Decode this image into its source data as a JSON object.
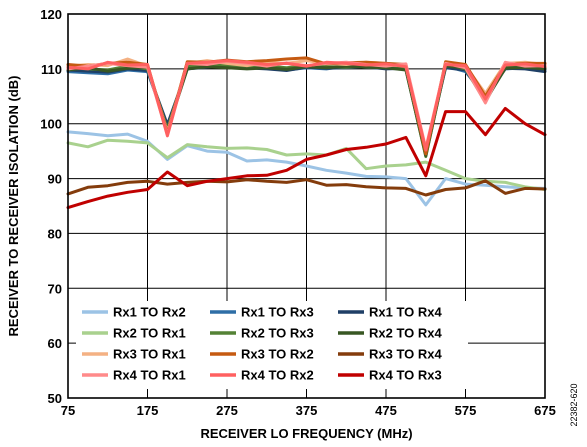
{
  "figure_id": "22382-620",
  "chart_data": {
    "type": "line",
    "xlabel": "RECEIVER LO FREQUENCY (MHz)",
    "ylabel": "RECEIVER TO RECEIVER ISOLATION (dB)",
    "xlim": [
      75,
      675
    ],
    "ylim": [
      50,
      120
    ],
    "xticks": [
      75,
      175,
      275,
      375,
      475,
      575,
      675
    ],
    "yticks": [
      50,
      60,
      70,
      80,
      90,
      100,
      110,
      120
    ],
    "grid": true,
    "legend_position": "bottom-left, inside plot",
    "x": [
      75,
      100,
      125,
      150,
      175,
      200,
      225,
      250,
      275,
      300,
      325,
      350,
      375,
      400,
      425,
      450,
      475,
      500,
      525,
      550,
      575,
      600,
      625,
      650,
      675
    ],
    "series": [
      {
        "name": "Rx1 TO Rx2",
        "color": "#9cc3e5",
        "values": [
          98.5,
          98.2,
          97.8,
          98.1,
          96.8,
          93.5,
          96.0,
          95.0,
          94.8,
          93.2,
          93.4,
          93.0,
          92.3,
          91.5,
          91.0,
          90.4,
          90.3,
          90.0,
          85.2,
          90.0,
          89.0,
          88.8,
          88.5,
          88.3,
          88.2
        ]
      },
      {
        "name": "Rx1 TO Rx3",
        "color": "#2e6ea6",
        "values": [
          109.5,
          109.3,
          109.1,
          109.8,
          109.5,
          99.5,
          110.2,
          110.5,
          110.3,
          110.1,
          110.4,
          109.8,
          110.2,
          110.0,
          110.5,
          110.3,
          110.1,
          110.0,
          94.5,
          110.5,
          109.5,
          105.0,
          110.0,
          110.2,
          109.8
        ]
      },
      {
        "name": "Rx1 TO Rx4",
        "color": "#1f3f66",
        "values": [
          109.8,
          109.6,
          109.4,
          110.0,
          109.7,
          99.8,
          110.0,
          110.3,
          110.5,
          110.2,
          110.0,
          109.7,
          110.3,
          110.1,
          110.2,
          110.4,
          110.0,
          110.1,
          95.0,
          110.2,
          109.8,
          104.5,
          110.1,
          110.0,
          109.5
        ]
      },
      {
        "name": "Rx2 TO Rx1",
        "color": "#a9d18e",
        "values": [
          96.5,
          95.8,
          97.0,
          96.8,
          96.5,
          93.8,
          96.2,
          95.8,
          95.5,
          95.6,
          95.3,
          94.3,
          94.5,
          94.3,
          95.5,
          91.8,
          92.3,
          92.5,
          93.0,
          91.5,
          90.0,
          89.5,
          89.3,
          88.5,
          88.0
        ]
      },
      {
        "name": "Rx2 TO Rx3",
        "color": "#548235",
        "values": [
          110.2,
          110.0,
          109.8,
          110.5,
          110.0,
          99.0,
          110.5,
          110.8,
          110.6,
          110.3,
          110.5,
          110.2,
          110.6,
          110.4,
          110.3,
          110.5,
          110.2,
          110.0,
          94.0,
          110.8,
          110.0,
          104.0,
          110.5,
          110.6,
          110.3
        ]
      },
      {
        "name": "Rx2 TO Rx4",
        "color": "#385723",
        "values": [
          109.8,
          110.2,
          109.6,
          110.1,
          110.3,
          98.8,
          110.0,
          110.4,
          110.2,
          110.0,
          110.2,
          109.9,
          110.4,
          110.2,
          110.5,
          110.3,
          110.2,
          109.8,
          94.2,
          110.5,
          110.2,
          104.2,
          110.1,
          110.3,
          110.0
        ]
      },
      {
        "name": "Rx3 TO Rx1",
        "color": "#f4b183",
        "values": [
          110.5,
          110.8,
          110.6,
          111.8,
          110.5,
          98.5,
          111.0,
          111.5,
          111.0,
          110.6,
          111.2,
          111.0,
          111.5,
          111.0,
          110.8,
          111.2,
          111.0,
          110.5,
          94.8,
          111.0,
          110.5,
          105.5,
          111.0,
          111.2,
          110.8
        ]
      },
      {
        "name": "Rx3 TO Rx2",
        "color": "#c55a11",
        "values": [
          110.8,
          110.5,
          111.0,
          111.2,
          110.8,
          98.2,
          111.3,
          111.2,
          111.6,
          111.3,
          111.5,
          111.8,
          112.0,
          110.9,
          111.1,
          111.2,
          111.0,
          110.8,
          94.5,
          111.3,
          110.8,
          105.0,
          110.8,
          111.0,
          111.0
        ]
      },
      {
        "name": "Rx3 TO Rx4",
        "color": "#843c0c",
        "values": [
          87.2,
          88.4,
          88.7,
          89.3,
          89.5,
          89.0,
          89.3,
          89.5,
          89.4,
          89.8,
          89.5,
          89.3,
          89.8,
          88.8,
          88.9,
          88.5,
          88.3,
          88.2,
          87.0,
          88.0,
          88.3,
          89.6,
          87.3,
          88.2,
          88.1
        ]
      },
      {
        "name": "Rx4 TO Rx1",
        "color": "#ff8a8a",
        "values": [
          110.0,
          110.5,
          111.0,
          110.6,
          110.3,
          98.0,
          111.0,
          110.8,
          111.4,
          111.0,
          110.5,
          111.1,
          110.6,
          111.0,
          111.2,
          110.8,
          110.5,
          110.9,
          95.5,
          111.0,
          110.2,
          103.8,
          111.2,
          110.5,
          110.6
        ]
      },
      {
        "name": "Rx4 TO Rx2",
        "color": "#ff6060",
        "values": [
          110.3,
          110.0,
          111.2,
          110.7,
          110.8,
          97.8,
          111.0,
          111.2,
          111.5,
          111.2,
          110.8,
          111.0,
          110.5,
          111.2,
          111.0,
          110.7,
          110.9,
          110.4,
          95.2,
          110.8,
          110.6,
          104.5,
          110.7,
          110.9,
          110.4
        ]
      },
      {
        "name": "Rx4 TO Rx3",
        "color": "#c00000",
        "values": [
          84.7,
          85.8,
          86.8,
          87.5,
          88.0,
          91.2,
          88.7,
          89.5,
          90.0,
          90.5,
          90.6,
          91.5,
          93.5,
          94.3,
          95.3,
          95.7,
          96.3,
          97.5,
          90.5,
          102.2,
          102.2,
          98.0,
          102.8,
          100.0,
          98.0
        ]
      }
    ],
    "legend_entries": [
      [
        "Rx1 TO Rx2",
        "Rx1 TO Rx3",
        "Rx1 TO Rx4"
      ],
      [
        "Rx2 TO Rx1",
        "Rx2 TO Rx3",
        "Rx2 TO Rx4"
      ],
      [
        "Rx3 TO Rx1",
        "Rx3 TO Rx2",
        "Rx3 TO Rx4"
      ],
      [
        "Rx4 TO Rx1",
        "Rx4 TO Rx2",
        "Rx4 TO Rx3"
      ]
    ]
  }
}
